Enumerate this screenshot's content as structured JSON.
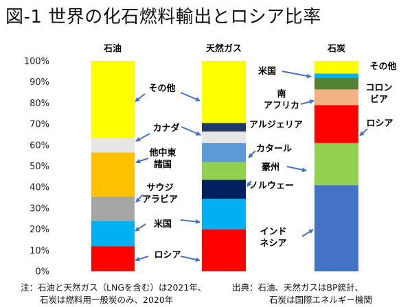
{
  "page": {
    "title": "図-1 世界の化石燃料輸出とロシア比率"
  },
  "footnotes": {
    "note_line1": "注：石油と天然ガス（LNGを含む）は2021年、",
    "note_line2": "石炭は燃料用一般炭のみ、2020年",
    "source_line1": "出典：石油、天然ガスはBP統計、",
    "source_line2": "石炭は国際エネルギー機関"
  },
  "chart_data": {
    "type": "bar",
    "stacked": true,
    "title": "",
    "xlabel": "",
    "ylabel": "",
    "ylim": [
      0,
      100
    ],
    "ytick_labels": [
      "0%",
      "10%",
      "20%",
      "30%",
      "40%",
      "50%",
      "60%",
      "70%",
      "80%",
      "90%",
      "100%"
    ],
    "categories": [
      "石油",
      "天然ガス",
      "石炭"
    ],
    "bars": [
      {
        "category": "石油",
        "segments": [
          {
            "name": "ロシア",
            "value": 12,
            "color": "#ff0000"
          },
          {
            "name": "米国",
            "value": 12,
            "color": "#00b0f0"
          },
          {
            "name": "サウジ\nアラビア",
            "value": 11.5,
            "color": "#a6a6a6"
          },
          {
            "name": "他中東\n諸国",
            "value": 21,
            "color": "#ffc000"
          },
          {
            "name": "カナダ",
            "value": 7,
            "color": "#e7e6e6"
          },
          {
            "name": "その他",
            "value": 36.5,
            "color": "#ffff00"
          }
        ]
      },
      {
        "category": "天然ガス",
        "segments": [
          {
            "name": "ロシア",
            "value": 20,
            "color": "#ff0000"
          },
          {
            "name": "米国",
            "value": 14.5,
            "color": "#00b0f0"
          },
          {
            "name": "ノルウェー",
            "value": 9,
            "color": "#002060"
          },
          {
            "name": "豪州",
            "value": 8.5,
            "color": "#92d050"
          },
          {
            "name": "カタール",
            "value": 9,
            "color": "#5b9bd5"
          },
          {
            "name": "",
            "value": 5.5,
            "color": "#e7e6e6"
          },
          {
            "name": "アルジェリア",
            "value": 4,
            "color": "#203864"
          },
          {
            "name": "その他",
            "value": 29.5,
            "color": "#ffff00"
          }
        ]
      },
      {
        "category": "石炭",
        "segments": [
          {
            "name": "インド\nネシア",
            "value": 41,
            "color": "#4472c4"
          },
          {
            "name": "豪州",
            "value": 20,
            "color": "#92d050"
          },
          {
            "name": "ロシア",
            "value": 18,
            "color": "#ff0000"
          },
          {
            "name": "南\nアフリカ",
            "value": 7.5,
            "color": "#f4b183"
          },
          {
            "name": "コロン\nビア",
            "value": 5.5,
            "color": "#548235"
          },
          {
            "name": "米国",
            "value": 2,
            "color": "#00b0f0"
          },
          {
            "name": "その他",
            "value": 6,
            "color": "#ffff00"
          }
        ]
      }
    ],
    "annotations": [
      {
        "text": "その他",
        "bar": "石油",
        "segment": "その他"
      },
      {
        "text": "カナダ",
        "bar": "石油",
        "segment": "カナダ"
      },
      {
        "text": "他中東\n諸国",
        "bar": "石油",
        "segment": "他中東\n諸国"
      },
      {
        "text": "サウジ\nアラビア",
        "bar": "石油",
        "segment": "サウジ\nアラビア"
      },
      {
        "text": "米国",
        "bar": "天然ガス",
        "segment": "米国"
      },
      {
        "text": "ロシア",
        "bar": "天然ガス",
        "segment": "ロシア"
      },
      {
        "text": "アルジェリア",
        "bar": "天然ガス",
        "segment": "アルジェリア"
      },
      {
        "text": "カタール",
        "bar": "天然ガス",
        "segment": "カタール"
      },
      {
        "text": "豪州",
        "bar": "石炭",
        "segment": "豪州"
      },
      {
        "text": "ノルウェー",
        "bar": "天然ガス",
        "segment": "ノルウェー"
      },
      {
        "text": "インド\nネシア",
        "bar": "石炭",
        "segment": "インド\nネシア"
      },
      {
        "text": "米国",
        "bar": "石炭",
        "segment": "米国"
      },
      {
        "text": "南\nアフリカ",
        "bar": "石炭",
        "segment": "南\nアフリカ"
      },
      {
        "text": "その他",
        "bar": "石炭",
        "segment": "その他"
      },
      {
        "text": "コロン\nビア",
        "bar": "石炭",
        "segment": "コロン\nビア"
      },
      {
        "text": "ロシア",
        "bar": "石炭",
        "segment": "ロシア"
      }
    ]
  }
}
